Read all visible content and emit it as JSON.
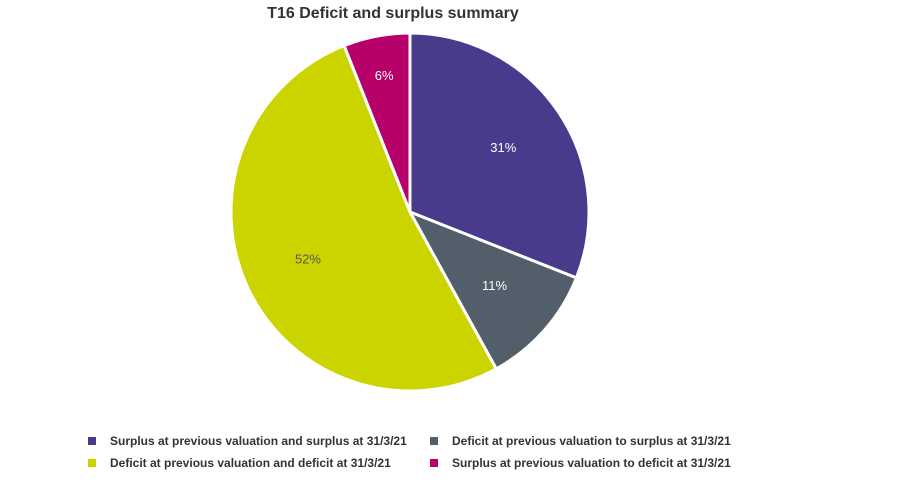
{
  "chart_data": {
    "type": "pie",
    "title": "T16 Deficit and surplus summary",
    "slices": [
      {
        "name": "Surplus at previous valuation and surplus at 31/3/21",
        "value": 31,
        "label": "31%",
        "color": "#4a3a8c",
        "label_color": "#ffffff"
      },
      {
        "name": "Deficit at previous valuation to surplus at 31/3/21",
        "value": 11,
        "label": "11%",
        "color": "#525f6b",
        "label_color": "#ffffff"
      },
      {
        "name": "Deficit at previous valuation and deficit at 31/3/21",
        "value": 52,
        "label": "52%",
        "color": "#ccd400",
        "label_color": "#555555"
      },
      {
        "name": "Surplus at previous valuation to deficit at 31/3/21",
        "value": 6,
        "label": "6%",
        "color": "#b8006b",
        "label_color": "#ffffff"
      }
    ],
    "legend_placement": "bottom"
  },
  "legend": {
    "items": [
      {
        "label": "Surplus at previous valuation and surplus at 31/3/21",
        "color": "#4a3a8c"
      },
      {
        "label": "Deficit at previous valuation to surplus at 31/3/21",
        "color": "#525f6b"
      },
      {
        "label": "Deficit at previous valuation and deficit at 31/3/21",
        "color": "#ccd400"
      },
      {
        "label": "Surplus at previous valuation to deficit at 31/3/21",
        "color": "#b8006b"
      }
    ]
  }
}
